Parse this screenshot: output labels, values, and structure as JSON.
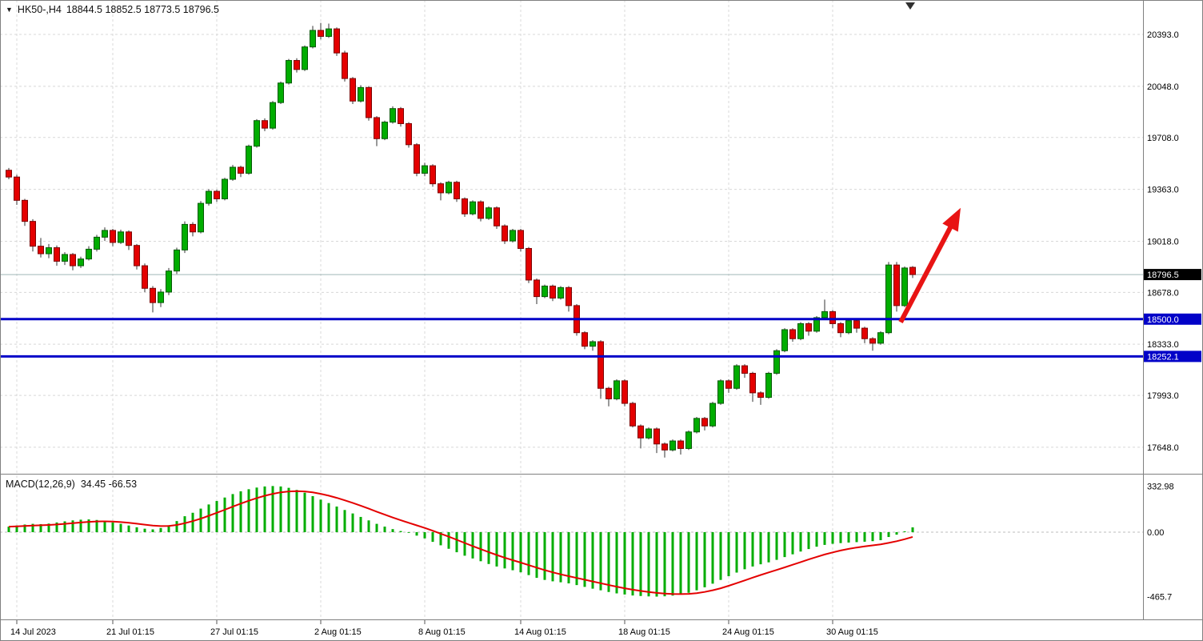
{
  "window": {
    "title_marker": "▼",
    "symbol": "HK50-,H4",
    "ohlc_text": "18844.5 18852.5 18773.5 18796.5"
  },
  "colors": {
    "background": "#ffffff",
    "up": "#00ad00",
    "up_stroke": "#055a05",
    "down": "#e40000",
    "down_stroke": "#7d0202",
    "wick": "#333333",
    "grid": "#d8d8d8",
    "frame": "#808080",
    "blue_line": "#0202c8",
    "tag_blue_bg": "#0202c8",
    "tag_black_bg": "#000000",
    "tag_text": "#ffffff",
    "axis_text": "#000000",
    "current_price_line": "#9fb6b6",
    "macd_hist": "#00ad00",
    "macd_signal": "#e40000",
    "arrow": "#e81414",
    "top_marker": "#303030"
  },
  "chart_data": {
    "type": "candlestick",
    "symbol": "HK50-",
    "timeframe": "H4",
    "last_bar": {
      "open": 18844.5,
      "high": 18852.5,
      "low": 18773.5,
      "close": 18796.5
    },
    "bars_visible": 142,
    "main_panel": {
      "ylim": [
        17472,
        20622
      ],
      "yticks": [
        {
          "v": 20393.0,
          "label": "20393.0"
        },
        {
          "v": 20048.0,
          "label": "20048.0"
        },
        {
          "v": 19708.0,
          "label": "19708.0"
        },
        {
          "v": 19363.0,
          "label": "19363.0"
        },
        {
          "v": 19018.0,
          "label": "19018.0"
        },
        {
          "v": 18678.0,
          "label": "18678.0"
        },
        {
          "v": 18333.0,
          "label": "18333.0"
        },
        {
          "v": 17993.0,
          "label": "17993.0"
        },
        {
          "v": 17648.0,
          "label": "17648.0"
        }
      ],
      "current_price": 18796.5,
      "current_price_label": "18796.5",
      "hlines": [
        {
          "price": 18500.0,
          "label": "18500.0"
        },
        {
          "price": 18252.1,
          "label": "18252.1"
        }
      ],
      "arrow": {
        "from_bar": 111.5,
        "from_price": 18480,
        "to_bar": 119.0,
        "to_price": 19240
      },
      "top_marker_bar": 112.7,
      "candles": [
        [
          19490,
          19505,
          19430,
          19445
        ],
        [
          19445,
          19460,
          19260,
          19290
        ],
        [
          19290,
          19300,
          19120,
          19150
        ],
        [
          19150,
          19165,
          18950,
          18985
        ],
        [
          18985,
          19040,
          18910,
          18935
        ],
        [
          18935,
          19000,
          18905,
          18975
        ],
        [
          18975,
          18990,
          18855,
          18885
        ],
        [
          18885,
          18945,
          18860,
          18930
        ],
        [
          18930,
          18940,
          18825,
          18855
        ],
        [
          18855,
          18915,
          18840,
          18900
        ],
        [
          18900,
          18985,
          18890,
          18965
        ],
        [
          18965,
          19060,
          18950,
          19045
        ],
        [
          19045,
          19110,
          19020,
          19090
        ],
        [
          19090,
          19100,
          18985,
          19010
        ],
        [
          19010,
          19095,
          19000,
          19080
        ],
        [
          19080,
          19090,
          18960,
          18990
        ],
        [
          18990,
          19000,
          18830,
          18855
        ],
        [
          18855,
          18870,
          18680,
          18705
        ],
        [
          18705,
          18720,
          18545,
          18610
        ],
        [
          18610,
          18700,
          18580,
          18680
        ],
        [
          18680,
          18840,
          18660,
          18820
        ],
        [
          18820,
          18975,
          18800,
          18960
        ],
        [
          18960,
          19150,
          18940,
          19130
        ],
        [
          19130,
          19145,
          19050,
          19080
        ],
        [
          19080,
          19285,
          19070,
          19270
        ],
        [
          19270,
          19365,
          19255,
          19350
        ],
        [
          19350,
          19360,
          19280,
          19300
        ],
        [
          19300,
          19440,
          19290,
          19430
        ],
        [
          19430,
          19525,
          19420,
          19510
        ],
        [
          19510,
          19520,
          19445,
          19470
        ],
        [
          19470,
          19660,
          19460,
          19650
        ],
        [
          19650,
          19830,
          19640,
          19820
        ],
        [
          19820,
          19835,
          19750,
          19770
        ],
        [
          19770,
          19950,
          19760,
          19940
        ],
        [
          19940,
          20080,
          19930,
          20070
        ],
        [
          20070,
          20230,
          20060,
          20220
        ],
        [
          20220,
          20235,
          20140,
          20160
        ],
        [
          20160,
          20320,
          20150,
          20310
        ],
        [
          20310,
          20450,
          20300,
          20420
        ],
        [
          20420,
          20470,
          20360,
          20380
        ],
        [
          20380,
          20465,
          20370,
          20430
        ],
        [
          20430,
          20440,
          20250,
          20270
        ],
        [
          20270,
          20285,
          20080,
          20100
        ],
        [
          20100,
          20110,
          19930,
          19950
        ],
        [
          19950,
          20055,
          19940,
          20040
        ],
        [
          20040,
          20050,
          19820,
          19840
        ],
        [
          19840,
          19850,
          19650,
          19700
        ],
        [
          19700,
          19820,
          19690,
          19810
        ],
        [
          19810,
          19915,
          19800,
          19900
        ],
        [
          19900,
          19910,
          19780,
          19800
        ],
        [
          19800,
          19810,
          19640,
          19660
        ],
        [
          19660,
          19670,
          19450,
          19470
        ],
        [
          19470,
          19540,
          19450,
          19520
        ],
        [
          19520,
          19530,
          19380,
          19400
        ],
        [
          19400,
          19410,
          19290,
          19340
        ],
        [
          19340,
          19420,
          19330,
          19410
        ],
        [
          19410,
          19420,
          19280,
          19300
        ],
        [
          19300,
          19310,
          19180,
          19200
        ],
        [
          19200,
          19290,
          19190,
          19280
        ],
        [
          19280,
          19290,
          19150,
          19170
        ],
        [
          19170,
          19250,
          19160,
          19240
        ],
        [
          19240,
          19250,
          19100,
          19120
        ],
        [
          19120,
          19130,
          19000,
          19020
        ],
        [
          19020,
          19100,
          19010,
          19090
        ],
        [
          19090,
          19100,
          18950,
          18970
        ],
        [
          18970,
          18980,
          18740,
          18760
        ],
        [
          18760,
          18770,
          18600,
          18650
        ],
        [
          18650,
          18730,
          18640,
          18720
        ],
        [
          18720,
          18730,
          18620,
          18640
        ],
        [
          18640,
          18720,
          18630,
          18710
        ],
        [
          18710,
          18720,
          18550,
          18590
        ],
        [
          18590,
          18600,
          18390,
          18410
        ],
        [
          18410,
          18420,
          18300,
          18320
        ],
        [
          18320,
          18360,
          18290,
          18350
        ],
        [
          18350,
          18360,
          17970,
          18040
        ],
        [
          18040,
          18050,
          17920,
          17970
        ],
        [
          17970,
          18100,
          17960,
          18090
        ],
        [
          18090,
          18100,
          17920,
          17940
        ],
        [
          17940,
          17950,
          17780,
          17790
        ],
        [
          17790,
          17800,
          17640,
          17710
        ],
        [
          17710,
          17780,
          17700,
          17770
        ],
        [
          17770,
          17780,
          17610,
          17670
        ],
        [
          17670,
          17680,
          17580,
          17630
        ],
        [
          17630,
          17700,
          17620,
          17690
        ],
        [
          17690,
          17700,
          17600,
          17640
        ],
        [
          17640,
          17760,
          17630,
          17750
        ],
        [
          17750,
          17850,
          17740,
          17840
        ],
        [
          17840,
          17850,
          17760,
          17790
        ],
        [
          17790,
          17950,
          17780,
          17940
        ],
        [
          17940,
          18100,
          17930,
          18090
        ],
        [
          18090,
          18100,
          18010,
          18040
        ],
        [
          18040,
          18200,
          18030,
          18190
        ],
        [
          18190,
          18200,
          18110,
          18140
        ],
        [
          18140,
          18150,
          17950,
          18010
        ],
        [
          18010,
          18020,
          17930,
          17980
        ],
        [
          17980,
          18150,
          17970,
          18140
        ],
        [
          18140,
          18300,
          18130,
          18290
        ],
        [
          18290,
          18440,
          18280,
          18430
        ],
        [
          18430,
          18440,
          18350,
          18370
        ],
        [
          18370,
          18480,
          18360,
          18470
        ],
        [
          18470,
          18480,
          18390,
          18420
        ],
        [
          18420,
          18520,
          18410,
          18510
        ],
        [
          18510,
          18630,
          18500,
          18550
        ],
        [
          18550,
          18560,
          18440,
          18470
        ],
        [
          18470,
          18480,
          18380,
          18410
        ],
        [
          18410,
          18500,
          18400,
          18490
        ],
        [
          18490,
          18500,
          18410,
          18440
        ],
        [
          18440,
          18450,
          18340,
          18370
        ],
        [
          18370,
          18380,
          18290,
          18340
        ],
        [
          18340,
          18420,
          18330,
          18410
        ],
        [
          18410,
          18880,
          18400,
          18860
        ],
        [
          18860,
          18880,
          18550,
          18590
        ],
        [
          18590,
          18850,
          18580,
          18840
        ],
        [
          18844.5,
          18852.5,
          18773.5,
          18796.5
        ]
      ]
    },
    "xticks": [
      {
        "bar": 1,
        "label": "14 Jul 2023"
      },
      {
        "bar": 13,
        "label": "21 Jul 01:15"
      },
      {
        "bar": 26,
        "label": "27 Jul 01:15"
      },
      {
        "bar": 39,
        "label": "2 Aug 01:15"
      },
      {
        "bar": 52,
        "label": "8 Aug 01:15"
      },
      {
        "bar": 64,
        "label": "14 Aug 01:15"
      },
      {
        "bar": 77,
        "label": "18 Aug 01:15"
      },
      {
        "bar": 90,
        "label": "24 Aug 01:15"
      },
      {
        "bar": 103,
        "label": "30 Aug 01:15"
      }
    ],
    "macd_panel": {
      "label": "MACD(12,26,9)",
      "value_main": 34.45,
      "value_signal": -66.53,
      "values_text": "34.45 -66.53",
      "signal_period": 9,
      "ylim": [
        -630,
        416
      ],
      "yticks": [
        {
          "v": 332.98,
          "label": "332.98"
        },
        {
          "v": 0,
          "label": "0.00"
        },
        {
          "v": -465.7,
          "label": "-465.7"
        }
      ],
      "hist": [
        40,
        48,
        55,
        60,
        58,
        62,
        70,
        78,
        85,
        90,
        92,
        88,
        80,
        70,
        60,
        48,
        35,
        25,
        20,
        30,
        50,
        80,
        115,
        140,
        170,
        200,
        225,
        250,
        275,
        295,
        310,
        322,
        330,
        333,
        330,
        320,
        305,
        285,
        260,
        235,
        210,
        185,
        160,
        135,
        110,
        85,
        60,
        40,
        22,
        8,
        -5,
        -25,
        -45,
        -70,
        -95,
        -120,
        -145,
        -170,
        -190,
        -210,
        -230,
        -248,
        -262,
        -275,
        -290,
        -310,
        -330,
        -345,
        -355,
        -362,
        -370,
        -382,
        -395,
        -408,
        -420,
        -432,
        -442,
        -450,
        -457,
        -461,
        -464,
        -465,
        -463,
        -458,
        -450,
        -438,
        -420,
        -398,
        -372,
        -345,
        -318,
        -292,
        -268,
        -248,
        -232,
        -218,
        -200,
        -180,
        -160,
        -140,
        -122,
        -105,
        -92,
        -84,
        -79,
        -75,
        -72,
        -69,
        -65,
        -58,
        -35,
        -18,
        6,
        34.45
      ]
    }
  }
}
